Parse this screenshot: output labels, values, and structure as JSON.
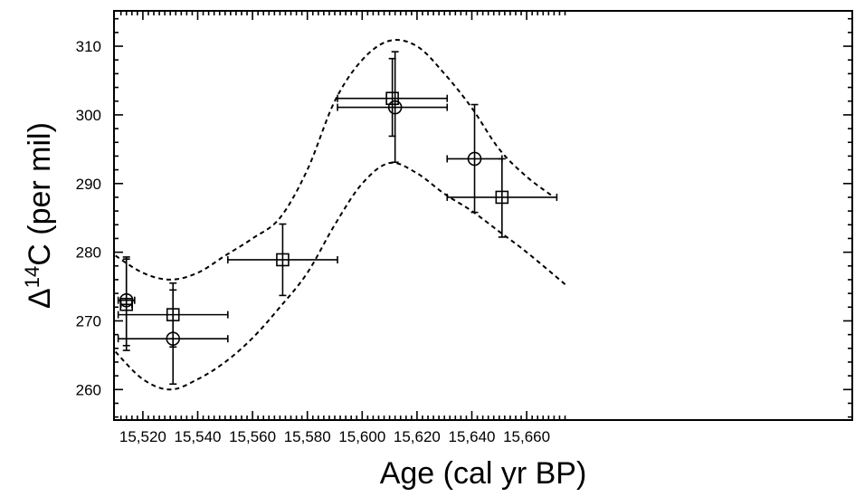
{
  "chart_data": {
    "type": "scatter",
    "title": "",
    "xlabel": "Age (cal yr BP)",
    "ylabel_parts": {
      "prefix": "Δ",
      "superscript": "14",
      "suffix": "C (per mil)"
    },
    "xlim": [
      15510,
      15675
    ],
    "ylim": [
      255,
      315
    ],
    "x_ticks": [
      15520,
      15540,
      15560,
      15580,
      15600,
      15620,
      15640,
      15660
    ],
    "x_tick_labels": [
      "15,520",
      "15,540",
      "15,560",
      "15,580",
      "15,600",
      "15,620",
      "15,640",
      "15,660"
    ],
    "y_ticks": [
      260,
      270,
      280,
      290,
      300,
      310
    ],
    "y_tick_labels": [
      "260",
      "270",
      "280",
      "290",
      "300",
      "310"
    ],
    "grid": false,
    "legend": "none",
    "series": [
      {
        "marker": "square",
        "points": [
          {
            "x": 15514,
            "y": 272.4,
            "xerr": [
              15512,
              15516
            ],
            "yerr": [
              265.7,
              279.0
            ]
          },
          {
            "x": 15531,
            "y": 270.9,
            "xerr": [
              15511,
              15551
            ],
            "yerr": [
              266.2,
              275.5
            ]
          },
          {
            "x": 15571,
            "y": 278.9,
            "xerr": [
              15551,
              15591
            ],
            "yerr": [
              273.7,
              284.1
            ]
          },
          {
            "x": 15611,
            "y": 302.4,
            "xerr": [
              15591,
              15631
            ],
            "yerr": [
              296.9,
              308.2
            ]
          },
          {
            "x": 15651,
            "y": 288.0,
            "xerr": [
              15631,
              15671
            ],
            "yerr": [
              282.2,
              293.6
            ]
          }
        ]
      },
      {
        "marker": "circle",
        "points": [
          {
            "x": 15514,
            "y": 273.0,
            "xerr": [
              15511,
              15517
            ],
            "yerr": [
              266.4,
              279.3
            ]
          },
          {
            "x": 15531,
            "y": 267.4,
            "xerr": [
              15511,
              15551
            ],
            "yerr": [
              260.8,
              274.5
            ]
          },
          {
            "x": 15612,
            "y": 301.1,
            "xerr": [
              15591,
              15631
            ],
            "yerr": [
              293.1,
              309.2
            ]
          },
          {
            "x": 15641,
            "y": 293.6,
            "xerr": [
              15631,
              15651
            ],
            "yerr": [
              285.8,
              301.5
            ]
          }
        ]
      }
    ],
    "envelope_upper": [
      [
        15510,
        279.5
      ],
      [
        15520,
        277
      ],
      [
        15530,
        276
      ],
      [
        15540,
        277
      ],
      [
        15550,
        279.5
      ],
      [
        15560,
        282
      ],
      [
        15570,
        285
      ],
      [
        15580,
        292
      ],
      [
        15590,
        302
      ],
      [
        15600,
        308
      ],
      [
        15610,
        310.8
      ],
      [
        15620,
        310
      ],
      [
        15630,
        306
      ],
      [
        15640,
        301
      ],
      [
        15650,
        295
      ],
      [
        15660,
        291
      ],
      [
        15670,
        288
      ]
    ],
    "envelope_lower": [
      [
        15510,
        265.5
      ],
      [
        15520,
        261.5
      ],
      [
        15530,
        260
      ],
      [
        15540,
        261.5
      ],
      [
        15550,
        264
      ],
      [
        15560,
        267.5
      ],
      [
        15570,
        272
      ],
      [
        15580,
        277
      ],
      [
        15590,
        284
      ],
      [
        15600,
        290
      ],
      [
        15610,
        293
      ],
      [
        15620,
        291.5
      ],
      [
        15630,
        288.5
      ],
      [
        15640,
        286
      ],
      [
        15650,
        283
      ],
      [
        15660,
        280
      ],
      [
        15675,
        275
      ]
    ]
  }
}
